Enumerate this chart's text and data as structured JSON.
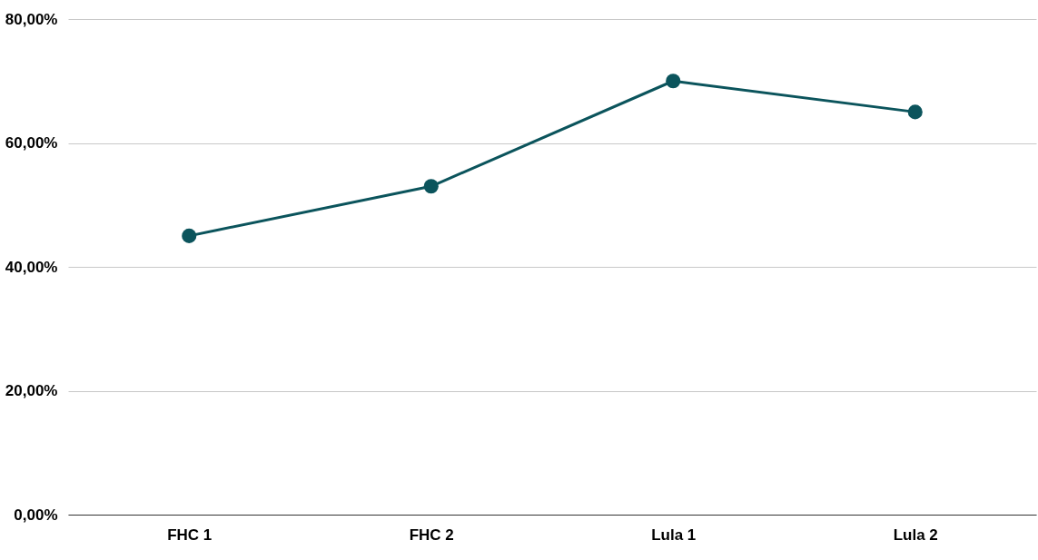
{
  "chart_data": {
    "type": "line",
    "categories": [
      "FHC 1",
      "FHC 2",
      "Lula 1",
      "Lula 2"
    ],
    "series": [
      {
        "color": "#0b545c",
        "values": [
          45,
          53,
          70,
          65
        ]
      }
    ],
    "ylim": [
      0,
      80
    ],
    "yticks": [
      {
        "value": 0,
        "label": "0,00%"
      },
      {
        "value": 20,
        "label": "20,00%"
      },
      {
        "value": 40,
        "label": "40,00%"
      },
      {
        "value": 60,
        "label": "60,00%"
      },
      {
        "value": 80,
        "label": "80,00%"
      }
    ],
    "grid": "y",
    "marker": "circle",
    "line_style": "solid"
  }
}
